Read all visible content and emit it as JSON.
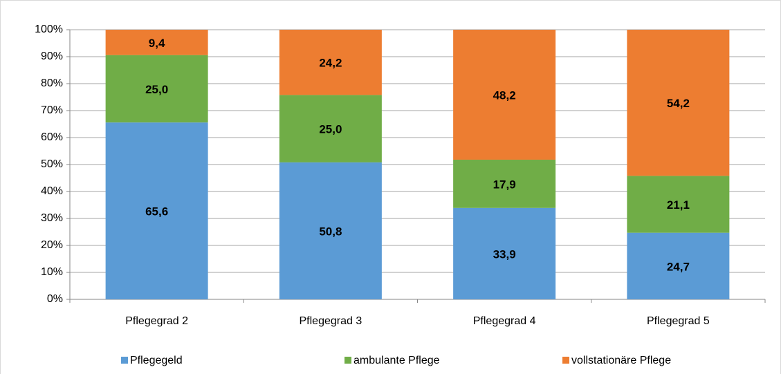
{
  "chart_data": {
    "type": "stacked_bar",
    "categories": [
      "Pflegegrad 2",
      "Pflegegrad 3",
      "Pflegegrad 4",
      "Pflegegrad 5"
    ],
    "series": [
      {
        "name": "Pflegegeld",
        "color": "#5b9bd5",
        "values": [
          65.6,
          50.8,
          33.9,
          24.7
        ],
        "value_labels": [
          "65,6",
          "50,8",
          "33,9",
          "24,7"
        ]
      },
      {
        "name": "ambulante Pflege",
        "color": "#70ad47",
        "values": [
          25.0,
          25.0,
          17.9,
          21.1
        ],
        "value_labels": [
          "25,0",
          "25,0",
          "17,9",
          "21,1"
        ]
      },
      {
        "name": "vollstationäre Pflege",
        "color": "#ed7d31",
        "values": [
          9.4,
          24.2,
          48.2,
          54.2
        ],
        "value_labels": [
          "9,4",
          "24,2",
          "48,2",
          "54,2"
        ]
      }
    ],
    "ylim": [
      0,
      100
    ],
    "yticks": [
      {
        "value": 0,
        "label": "0%"
      },
      {
        "value": 10,
        "label": "10%"
      },
      {
        "value": 20,
        "label": "20%"
      },
      {
        "value": 30,
        "label": "30%"
      },
      {
        "value": 40,
        "label": "40%"
      },
      {
        "value": 50,
        "label": "50%"
      },
      {
        "value": 60,
        "label": "60%"
      },
      {
        "value": 70,
        "label": "70%"
      },
      {
        "value": 80,
        "label": "80%"
      },
      {
        "value": 90,
        "label": "90%"
      },
      {
        "value": 100,
        "label": "100%"
      }
    ],
    "grid": true,
    "legend": "bottom"
  }
}
